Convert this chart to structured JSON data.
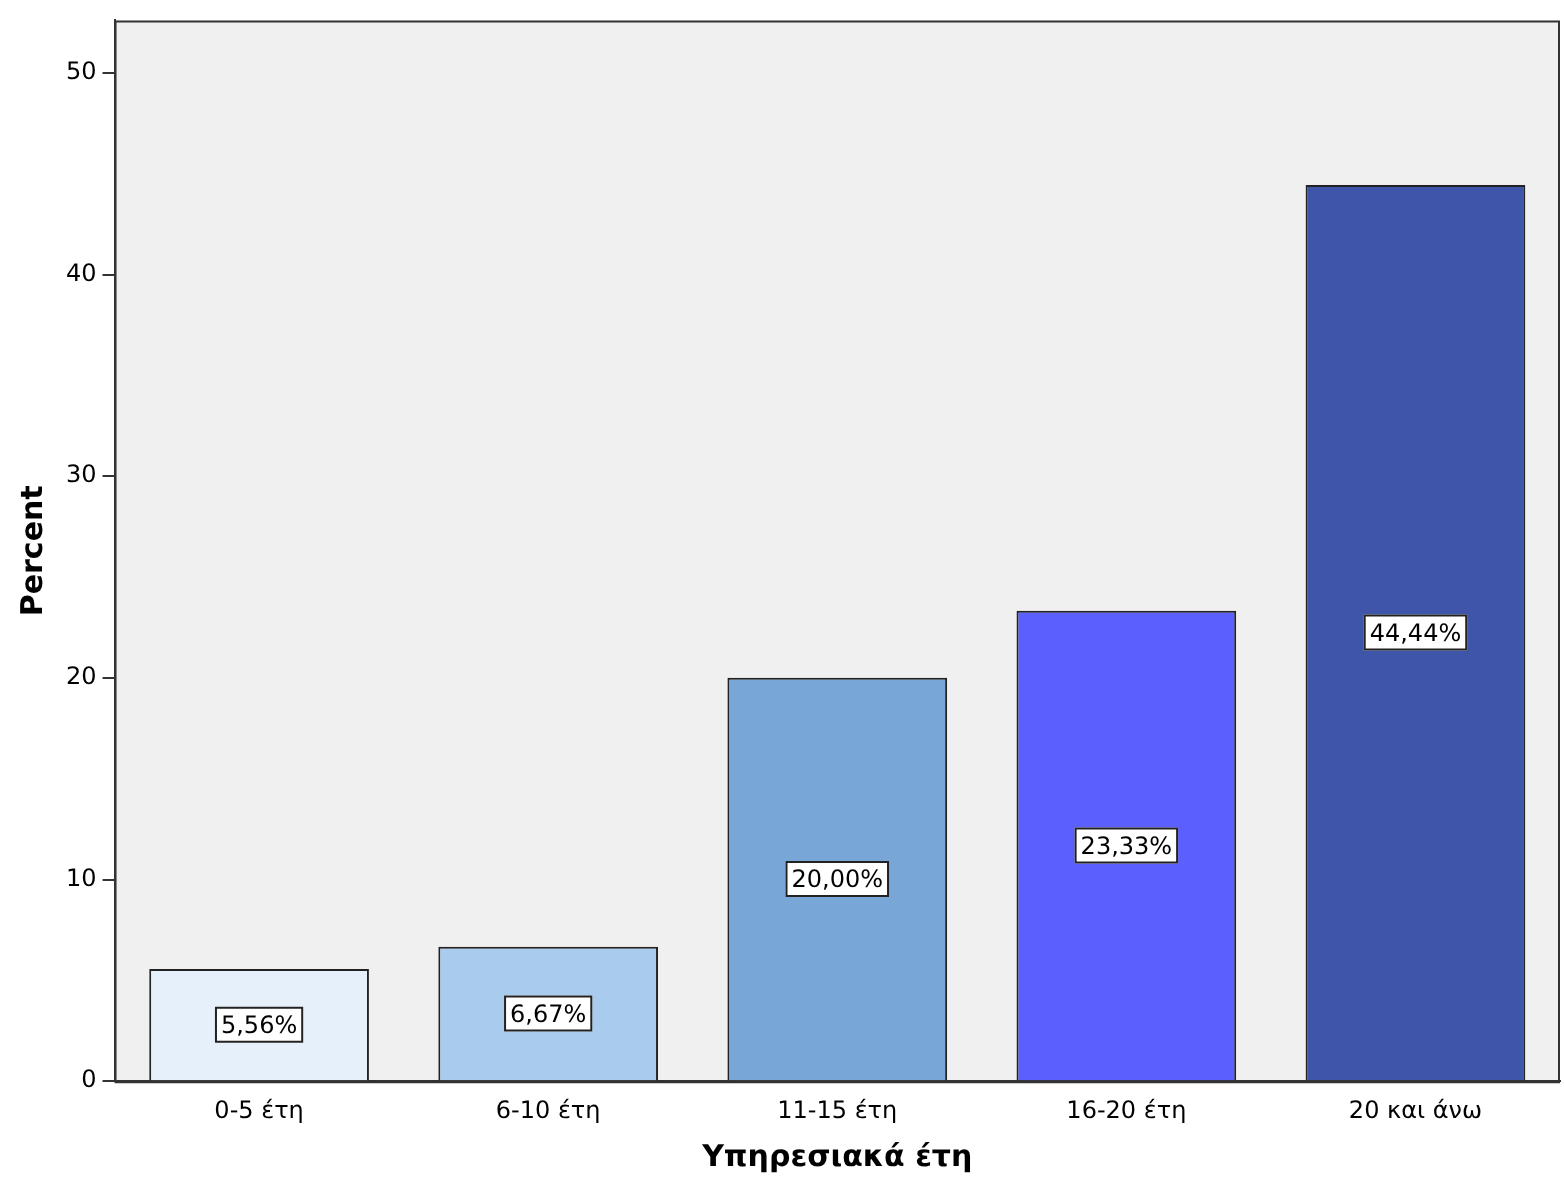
{
  "chart_data": {
    "type": "bar",
    "xlabel": "Υπηρεσιακά έτη",
    "ylabel": "Percent",
    "categories": [
      "0-5 έτη",
      "6-10 έτη",
      "11-15 έτη",
      "16-20 έτη",
      "20 και άνω"
    ],
    "values": [
      5.56,
      6.67,
      20.0,
      23.33,
      44.44
    ],
    "colors": [
      "#e6f0fb",
      "#a8cbee",
      "#78a6d6",
      "#5b5ffd",
      "#3e55aa"
    ],
    "value_labels": [
      "5,56%",
      "6,67%",
      "20,00%",
      "23,33%",
      "44,44%"
    ],
    "ylim": [
      0,
      52.6
    ],
    "yticks": [
      0,
      10,
      20,
      30,
      40,
      50
    ],
    "grid": false,
    "legend": false
  }
}
